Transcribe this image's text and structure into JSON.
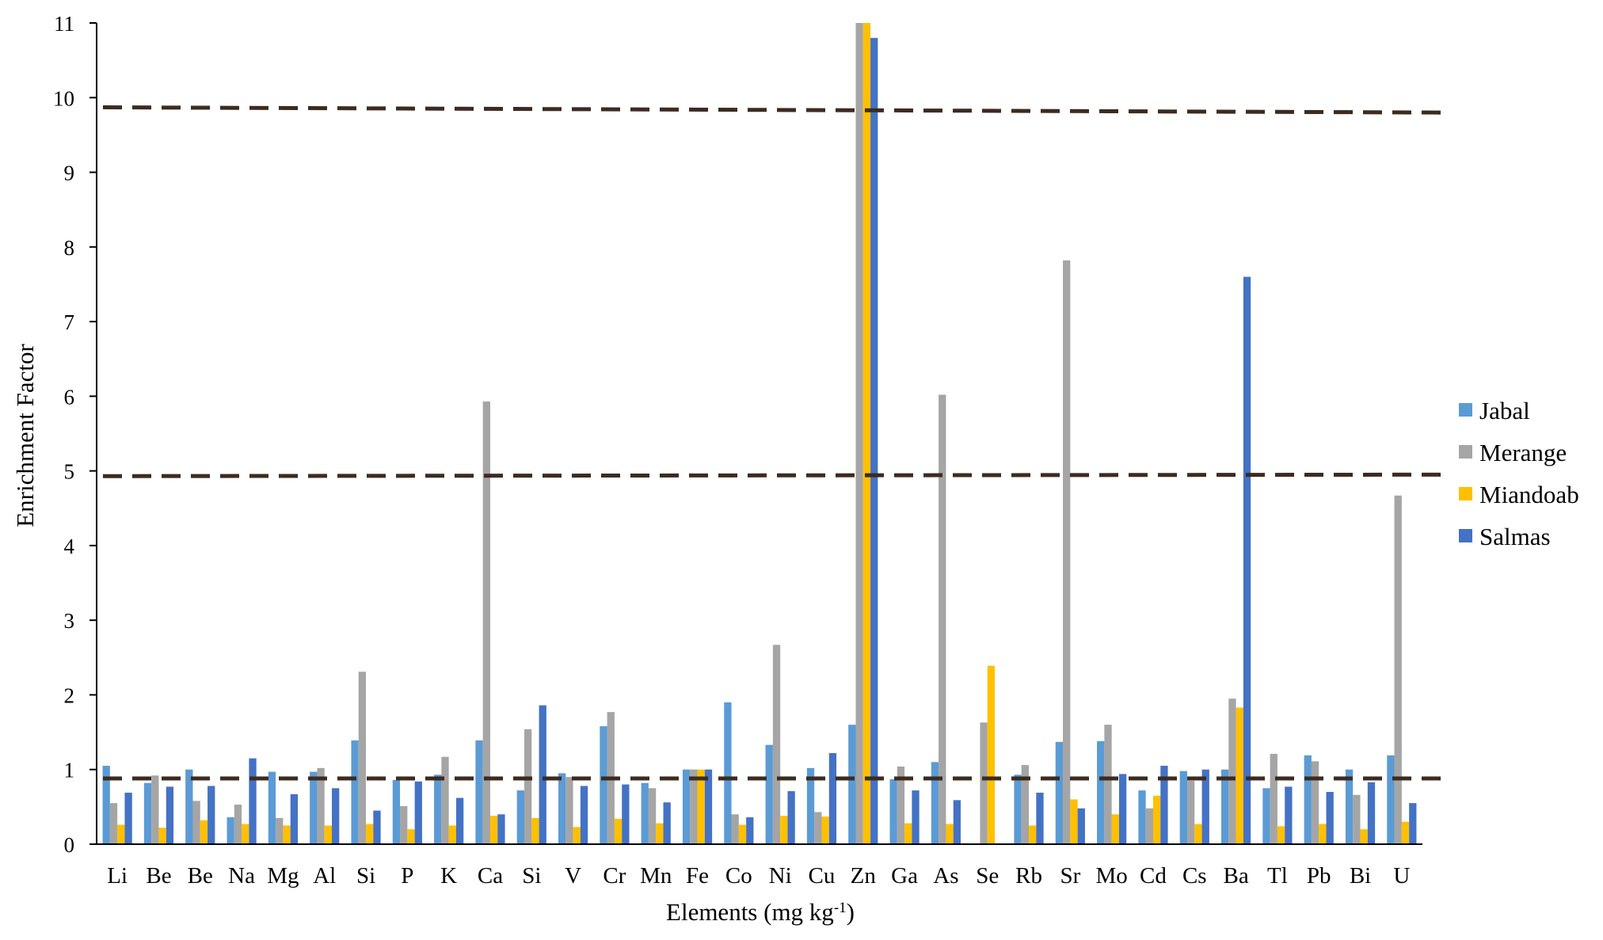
{
  "chart_data": {
    "type": "bar",
    "ylabel": "Enrichment Factor",
    "xlabel_main": "Elements (mg kg",
    "xlabel_sup": "-1",
    "xlabel_close": ")",
    "ylim": [
      0,
      11
    ],
    "yticks": [
      0,
      1,
      2,
      3,
      4,
      5,
      6,
      7,
      8,
      9,
      10,
      11
    ],
    "categories": [
      "Li",
      "Be",
      "Be",
      "Na",
      "Mg",
      "Al",
      "Si",
      "P",
      "K",
      "Ca",
      "Si",
      "V",
      "Cr",
      "Mn",
      "Fe",
      "Co",
      "Ni",
      "Cu",
      "Zn",
      "Ga",
      "As",
      "Se",
      "Rb",
      "Sr",
      "Mo",
      "Cd",
      "Cs",
      "Ba",
      "Tl",
      "Pb",
      "Bi",
      "U"
    ],
    "series": [
      {
        "name": "Jabal",
        "color": "#5B9BD5",
        "values": [
          1.05,
          0.82,
          1.0,
          0.36,
          0.97,
          0.97,
          1.39,
          0.86,
          0.93,
          1.39,
          0.72,
          0.95,
          1.58,
          0.82,
          1.0,
          1.9,
          1.33,
          1.02,
          1.6,
          0.87,
          1.1,
          0.0,
          0.93,
          1.37,
          1.38,
          0.72,
          0.98,
          1.0,
          0.75,
          1.19,
          1.0,
          1.19
        ]
      },
      {
        "name": "Merange",
        "color": "#A5A5A5",
        "values": [
          0.55,
          0.92,
          0.58,
          0.53,
          0.35,
          1.02,
          2.31,
          0.51,
          1.17,
          5.93,
          1.54,
          0.9,
          1.77,
          0.75,
          1.0,
          0.4,
          2.67,
          0.43,
          11.0,
          1.04,
          6.02,
          1.63,
          1.06,
          7.82,
          1.6,
          0.48,
          0.85,
          1.95,
          1.21,
          1.11,
          0.66,
          4.67
        ]
      },
      {
        "name": "Miandoab",
        "color": "#FFC000",
        "values": [
          0.26,
          0.22,
          0.32,
          0.27,
          0.25,
          0.25,
          0.27,
          0.2,
          0.25,
          0.38,
          0.35,
          0.23,
          0.34,
          0.28,
          1.0,
          0.26,
          0.38,
          0.37,
          11.0,
          0.28,
          0.27,
          2.39,
          0.25,
          0.6,
          0.4,
          0.65,
          0.27,
          1.83,
          0.24,
          0.27,
          0.2,
          0.3
        ]
      },
      {
        "name": "Salmas",
        "color": "#4472C4",
        "values": [
          0.69,
          0.77,
          0.78,
          1.15,
          0.67,
          0.75,
          0.45,
          0.84,
          0.62,
          0.4,
          1.86,
          0.78,
          0.8,
          0.56,
          1.0,
          0.36,
          0.71,
          1.22,
          10.8,
          0.72,
          0.59,
          0.0,
          0.69,
          0.48,
          0.94,
          1.05,
          1.0,
          7.6,
          0.77,
          0.7,
          0.83,
          0.55
        ]
      }
    ],
    "reference_lines": [
      {
        "y_start": 0.88,
        "y_end": 0.88,
        "color": "#3D2B20"
      },
      {
        "y_start": 4.93,
        "y_end": 4.95,
        "color": "#3D2B20"
      },
      {
        "y_start": 9.87,
        "y_end": 9.8,
        "color": "#3D2B20"
      }
    ],
    "legend_position": "right",
    "grid": false
  }
}
